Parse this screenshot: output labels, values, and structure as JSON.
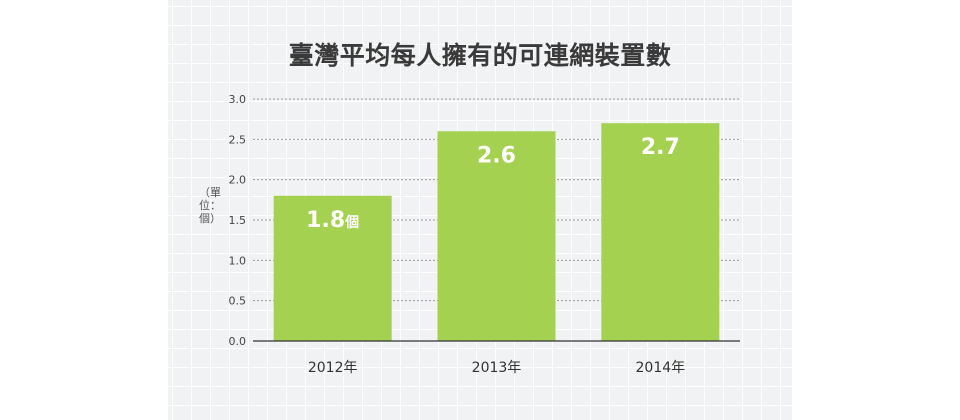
{
  "chart_data": {
    "type": "bar",
    "title": "臺灣平均每人擁有的可連網裝置數",
    "ylabel": "（單位：個）",
    "xlabel": "",
    "categories": [
      "2012年",
      "2013年",
      "2014年"
    ],
    "values": [
      1.8,
      2.6,
      2.7
    ],
    "value_labels": [
      "1.8",
      "2.6",
      "2.7"
    ],
    "value_unit_suffix": "個",
    "ylim": [
      0,
      3.0
    ],
    "yticks": [
      "0.0",
      "0.5",
      "1.0",
      "1.5",
      "2.0",
      "2.5",
      "3.0"
    ],
    "ytick_values": [
      0,
      0.5,
      1.0,
      1.5,
      2.0,
      2.5,
      3.0
    ],
    "grid": true,
    "bar_color": "#a5d151"
  }
}
